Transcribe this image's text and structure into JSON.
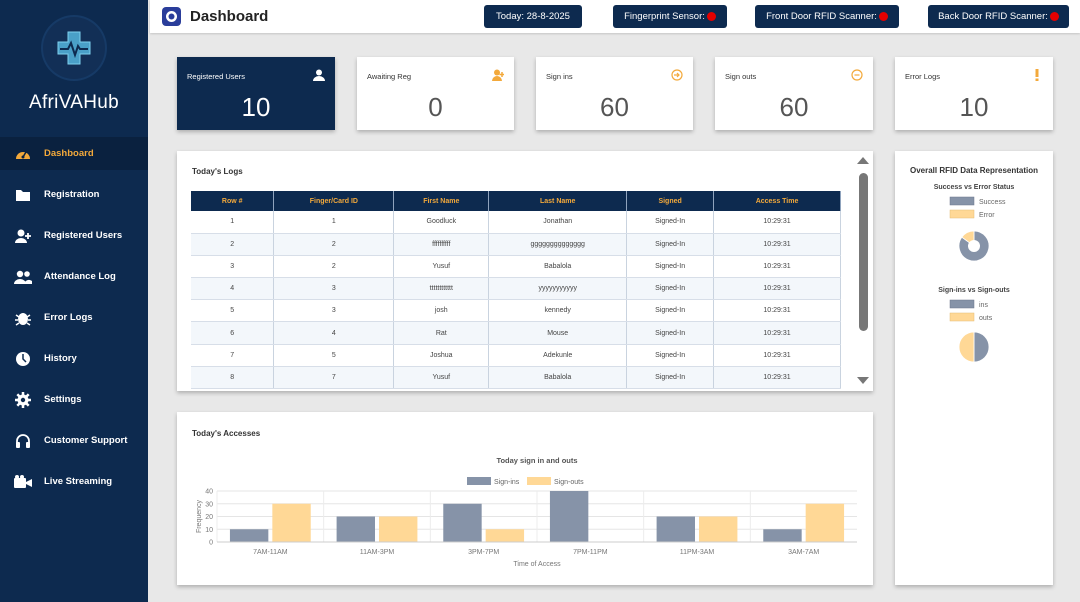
{
  "app": {
    "brand": "AfriVAHub",
    "page_title": "Dashboard"
  },
  "header": {
    "today": "Today: 28-8-2025",
    "fingerprint": "Fingerprint Sensor:",
    "front_door": "Front Door RFID Scanner:",
    "back_door": "Back Door RFID Scanner:",
    "status_color": "#e40000"
  },
  "sidebar": {
    "items": [
      {
        "label": "Dashboard",
        "icon": "dashboard-icon"
      },
      {
        "label": "Registration",
        "icon": "folder-icon"
      },
      {
        "label": "Registered Users",
        "icon": "user-add-icon"
      },
      {
        "label": "Attendance Log",
        "icon": "users-icon"
      },
      {
        "label": "Error Logs",
        "icon": "bug-icon"
      },
      {
        "label": "History",
        "icon": "clock-icon"
      },
      {
        "label": "Settings",
        "icon": "gear-icon"
      },
      {
        "label": "Customer Support",
        "icon": "headset-icon"
      },
      {
        "label": "Live Streaming",
        "icon": "video-icon"
      }
    ]
  },
  "stats": [
    {
      "label": "Registered Users",
      "value": "10",
      "icon": "user-icon"
    },
    {
      "label": "Awaiting Reg",
      "value": "0",
      "icon": "user-plus-icon"
    },
    {
      "label": "Sign ins",
      "value": "60",
      "icon": "sign-in-icon"
    },
    {
      "label": "Sign outs",
      "value": "60",
      "icon": "sign-out-icon"
    },
    {
      "label": "Error Logs",
      "value": "10",
      "icon": "exclamation-icon"
    }
  ],
  "logs": {
    "title": "Today's Logs",
    "columns": [
      "Row #",
      "Finger/Card ID",
      "First Name",
      "Last Name",
      "Signed",
      "Access Time"
    ],
    "rows": [
      [
        "1",
        "1",
        "Goodluck",
        "Jonathan",
        "Signed-In",
        "10:29:31"
      ],
      [
        "2",
        "2",
        "ffffffffff",
        "gggggggggggggg",
        "Signed-In",
        "10:29:31"
      ],
      [
        "3",
        "2",
        "Yusuf",
        "Babalola",
        "Signed-In",
        "10:29:31"
      ],
      [
        "4",
        "3",
        "tttttttttttt",
        "yyyyyyyyyyy",
        "Signed-In",
        "10:29:31"
      ],
      [
        "5",
        "3",
        "josh",
        "kennedy",
        "Signed-In",
        "10:29:31"
      ],
      [
        "6",
        "4",
        "Rat",
        "Mouse",
        "Signed-In",
        "10:29:31"
      ],
      [
        "7",
        "5",
        "Joshua",
        "Adekunle",
        "Signed-In",
        "10:29:31"
      ],
      [
        "8",
        "7",
        "Yusuf",
        "Babalola",
        "Signed-In",
        "10:29:31"
      ]
    ]
  },
  "accesses": {
    "title": "Today's Accesses"
  },
  "chart_data": [
    {
      "type": "bar",
      "title": "Today sign in and outs",
      "xlabel": "Time of Access",
      "ylabel": "Frequency",
      "categories": [
        "7AM-11AM",
        "11AM-3PM",
        "3PM-7PM",
        "7PM-11PM",
        "11PM-3AM",
        "3AM-7AM"
      ],
      "series": [
        {
          "name": "Sign-ins",
          "values": [
            10,
            20,
            30,
            40,
            20,
            10
          ],
          "color": "#8693a8"
        },
        {
          "name": "Sign-outs",
          "values": [
            30,
            20,
            10,
            0,
            20,
            30
          ],
          "color": "#ffd896"
        }
      ],
      "ylim": [
        0,
        40
      ],
      "yticks": [
        "0",
        "10",
        "20",
        "30",
        "40"
      ],
      "grid": true,
      "legend": "top"
    },
    {
      "type": "pie",
      "title": "Success vs Error Status",
      "categories": [
        "Success",
        "Error"
      ],
      "values": [
        85,
        15
      ],
      "colors": [
        "#8693a8",
        "#ffd896"
      ],
      "legend": "top"
    },
    {
      "type": "pie",
      "title": "Sign-ins vs Sign-outs",
      "categories": [
        "ins",
        "outs"
      ],
      "values": [
        50,
        50
      ],
      "colors": [
        "#8693a8",
        "#ffd896"
      ],
      "legend": "top"
    }
  ],
  "rfid": {
    "title": "Overall RFID Data Representation"
  }
}
